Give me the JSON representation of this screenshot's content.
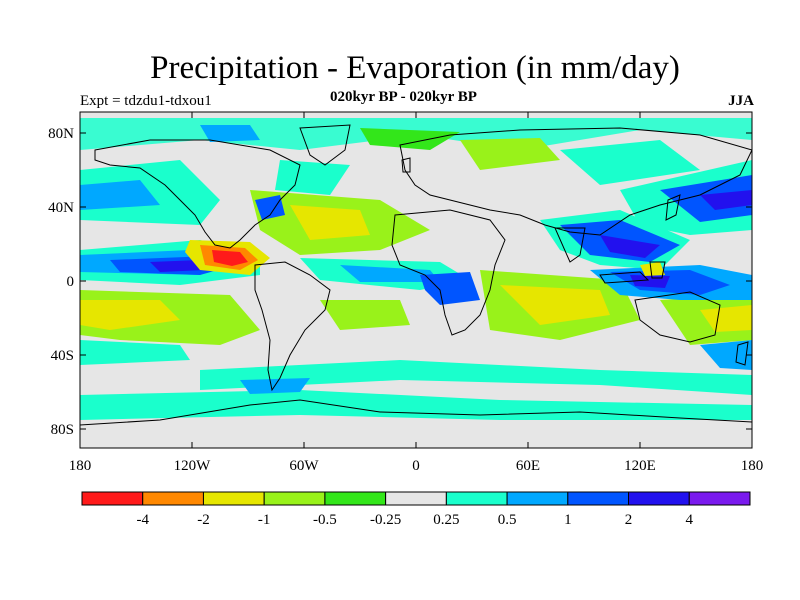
{
  "title": "Precipitation - Evaporation (in mm/day)",
  "experiment": "Expt = tdzdu1-tdxou1",
  "subtitle": "020kyr BP - 020kyr BP",
  "season": "JJA",
  "lat_ticks": [
    "80N",
    "40N",
    "0",
    "40S",
    "80S"
  ],
  "lon_ticks": [
    "180",
    "120W",
    "60W",
    "0",
    "60E",
    "120E",
    "180"
  ],
  "legend": {
    "colors": [
      "#ff1a1a",
      "#ff8800",
      "#e6e600",
      "#99f21a",
      "#33e61a",
      "#e6e6e6",
      "#1affcc",
      "#00a8ff",
      "#0055ff",
      "#2211ee",
      "#7a1aee"
    ],
    "labels": [
      "-4",
      "-2",
      "-1",
      "-0.5",
      "-0.25",
      "0.25",
      "0.5",
      "1",
      "2",
      "4"
    ]
  },
  "colors": {
    "ocean_background": "#e6e6e6",
    "coastline": "#000000"
  }
}
